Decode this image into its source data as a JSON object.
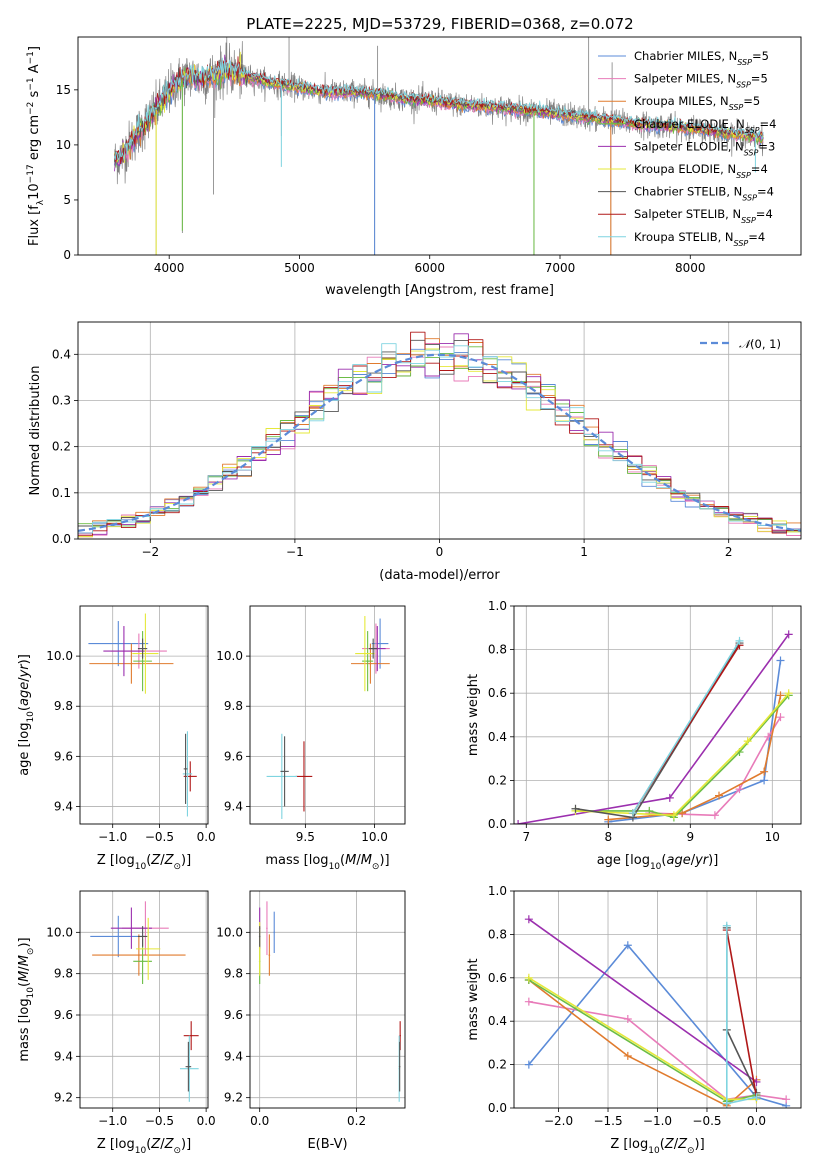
{
  "figure": {
    "title": "PLATE=2225, MJD=53729, FIBERID=0368, z=0.072"
  },
  "models": [
    {
      "name": "Chabrier MILES",
      "nssp": "5",
      "color": "#5b8bd8"
    },
    {
      "name": "Salpeter MILES",
      "nssp": "5",
      "color": "#e87bb9"
    },
    {
      "name": "Kroupa MILES",
      "nssp": "5",
      "color": "#e07b2e"
    },
    {
      "name": "Chabrier ELODIE",
      "nssp": "4",
      "color": "#6bbd45"
    },
    {
      "name": "Salpeter ELODIE",
      "nssp": "3",
      "color": "#9b2fae"
    },
    {
      "name": "Kroupa ELODIE",
      "nssp": "4",
      "color": "#e5e83a"
    },
    {
      "name": "Chabrier STELIB",
      "nssp": "4",
      "color": "#555555"
    },
    {
      "name": "Salpeter STELIB",
      "nssp": "4",
      "color": "#b01818"
    },
    {
      "name": "Kroupa STELIB",
      "nssp": "4",
      "color": "#7fd4e0"
    }
  ],
  "chart_data": [
    {
      "id": "spectrum",
      "type": "line",
      "xlabel": "wavelength [Angstrom, rest frame]",
      "ylabel": "Flux [f_λ10^-17 erg cm^-2 s^-1 A^-1]",
      "xlim": [
        3300,
        8850
      ],
      "ylim": [
        0,
        19.8
      ],
      "xticks": [
        4000,
        5000,
        6000,
        7000,
        8000
      ],
      "yticks": [
        0,
        5,
        10,
        15
      ],
      "grid": false,
      "legend": "top-right",
      "continuum": [
        [
          3580,
          8.5
        ],
        [
          3650,
          9.2
        ],
        [
          3750,
          11.0
        ],
        [
          3850,
          12.4
        ],
        [
          3950,
          14.0
        ],
        [
          4050,
          15.6
        ],
        [
          4150,
          16.3
        ],
        [
          4250,
          16.0
        ],
        [
          4350,
          16.3
        ],
        [
          4450,
          16.8
        ],
        [
          4600,
          16.2
        ],
        [
          4800,
          15.6
        ],
        [
          5000,
          15.2
        ],
        [
          5200,
          14.8
        ],
        [
          5400,
          14.8
        ],
        [
          5600,
          14.6
        ],
        [
          5800,
          14.2
        ],
        [
          6000,
          14.0
        ],
        [
          6200,
          13.7
        ],
        [
          6400,
          13.5
        ],
        [
          6600,
          13.3
        ],
        [
          6800,
          13.1
        ],
        [
          7000,
          12.8
        ],
        [
          7200,
          12.5
        ],
        [
          7400,
          12.2
        ],
        [
          7600,
          11.9
        ],
        [
          7800,
          11.7
        ],
        [
          8000,
          11.5
        ],
        [
          8200,
          11.2
        ],
        [
          8400,
          10.9
        ],
        [
          8560,
          10.6
        ]
      ],
      "data_dips": [
        [
          3900,
          0.0
        ],
        [
          4101,
          2.0
        ],
        [
          4340,
          5.5
        ],
        [
          4861,
          10.8
        ],
        [
          5577,
          0.0
        ],
        [
          6800,
          0.0
        ],
        [
          7390,
          0.0
        ]
      ],
      "data_spikes": [
        [
          4920,
          19.8
        ],
        [
          5600,
          19.0
        ],
        [
          7220,
          19.8
        ],
        [
          7400,
          17.5
        ]
      ]
    },
    {
      "id": "residual-distribution",
      "type": "line",
      "xlabel": "(data-model)/error",
      "ylabel": "Normed distribution",
      "xlim": [
        -2.5,
        2.5
      ],
      "ylim": [
        0,
        0.47
      ],
      "xticks": [
        -2,
        -1,
        0,
        1,
        2
      ],
      "yticks": [
        0.0,
        0.1,
        0.2,
        0.3,
        0.4
      ],
      "grid": true,
      "legend": "top-right",
      "reference_curve": "N(0,1)",
      "bin_width": 0.1
    },
    {
      "id": "age-vs-Z",
      "type": "scatter",
      "xlabel": "Z [log10(Z/Z⊙)]",
      "ylabel": "age  [log10(age/yr)]",
      "xlim": [
        -1.35,
        0.02
      ],
      "ylim": [
        9.33,
        10.2
      ],
      "xticks": [
        -1.0,
        -0.5,
        0.0
      ],
      "yticks": [
        9.4,
        9.6,
        9.8,
        10.0
      ],
      "grid": true,
      "points": [
        {
          "model": 0,
          "x": -0.94,
          "y": 10.05,
          "xerr": 0.32,
          "yerr": 0.09
        },
        {
          "model": 1,
          "x": -0.72,
          "y": 10.02,
          "xerr": 0.3,
          "yerr": 0.07
        },
        {
          "model": 2,
          "x": -0.8,
          "y": 9.97,
          "xerr": 0.45,
          "yerr": 0.08
        },
        {
          "model": 3,
          "x": -0.68,
          "y": 9.98,
          "xerr": 0.1,
          "yerr": 0.12
        },
        {
          "model": 4,
          "x": -0.88,
          "y": 10.02,
          "xerr": 0.22,
          "yerr": 0.1
        },
        {
          "model": 5,
          "x": -0.65,
          "y": 10.01,
          "xerr": 0.14,
          "yerr": 0.16
        },
        {
          "model": 6,
          "x": -0.68,
          "y": 10.03,
          "xerr": 0.05,
          "yerr": 0.04
        },
        {
          "model": 7,
          "x": -0.17,
          "y": 9.52,
          "xerr": 0.07,
          "yerr": 0.06
        },
        {
          "model": 8,
          "x": -0.2,
          "y": 9.53,
          "xerr": 0.05,
          "yerr": 0.17
        },
        {
          "model": 6,
          "x": -0.22,
          "y": 9.55,
          "xerr": 0.02,
          "yerr": 0.14
        }
      ]
    },
    {
      "id": "age-vs-mass",
      "type": "scatter",
      "xlabel": "mass [log10(M/M⊙)]",
      "ylabel": "",
      "xlim": [
        9.1,
        10.22
      ],
      "ylim": [
        9.33,
        10.2
      ],
      "xticks": [
        9.5,
        10.0
      ],
      "yticks": [
        9.4,
        9.6,
        9.8,
        10.0
      ],
      "grid": true,
      "points": [
        {
          "model": 0,
          "x": 10.04,
          "y": 10.05,
          "xerr": 0.06,
          "yerr": 0.1
        },
        {
          "model": 1,
          "x": 10.01,
          "y": 10.03,
          "xerr": 0.1,
          "yerr": 0.1
        },
        {
          "model": 2,
          "x": 9.97,
          "y": 9.97,
          "xerr": 0.14,
          "yerr": 0.08
        },
        {
          "model": 3,
          "x": 9.95,
          "y": 9.98,
          "xerr": 0.04,
          "yerr": 0.12
        },
        {
          "model": 4,
          "x": 10.02,
          "y": 10.03,
          "xerr": 0.06,
          "yerr": 0.09
        },
        {
          "model": 5,
          "x": 9.93,
          "y": 10.01,
          "xerr": 0.07,
          "yerr": 0.15
        },
        {
          "model": 6,
          "x": 9.99,
          "y": 10.03,
          "xerr": 0.03,
          "yerr": 0.04
        },
        {
          "model": 7,
          "x": 9.49,
          "y": 9.52,
          "xerr": 0.06,
          "yerr": 0.14
        },
        {
          "model": 8,
          "x": 9.33,
          "y": 9.52,
          "xerr": 0.11,
          "yerr": 0.17
        },
        {
          "model": 6,
          "x": 9.35,
          "y": 9.54,
          "xerr": 0.03,
          "yerr": 0.14
        }
      ]
    },
    {
      "id": "mass-weight-vs-age",
      "type": "line",
      "xlabel": "age  [log10(age/yr)]",
      "ylabel": "mass weight",
      "xlim": [
        6.85,
        10.35
      ],
      "ylim": [
        0,
        1.0
      ],
      "xticks": [
        7,
        8,
        9,
        10
      ],
      "yticks": [
        0.0,
        0.2,
        0.4,
        0.6,
        0.8,
        1.0
      ],
      "grid": true,
      "series": [
        {
          "model": 0,
          "x": [
            8.0,
            8.9,
            9.9,
            10.1
          ],
          "y": [
            0.01,
            0.05,
            0.2,
            0.75
          ]
        },
        {
          "model": 1,
          "x": [
            8.5,
            9.3,
            9.6,
            9.95,
            10.1
          ],
          "y": [
            0.05,
            0.04,
            0.16,
            0.4,
            0.49
          ]
        },
        {
          "model": 2,
          "x": [
            8.0,
            8.9,
            9.35,
            9.9,
            10.1
          ],
          "y": [
            0.02,
            0.05,
            0.13,
            0.24,
            0.59
          ]
        },
        {
          "model": 3,
          "x": [
            7.6,
            8.5,
            8.8,
            9.6,
            10.2
          ],
          "y": [
            0.06,
            0.06,
            0.03,
            0.33,
            0.59
          ]
        },
        {
          "model": 4,
          "x": [
            6.9,
            8.75,
            10.2
          ],
          "y": [
            0.0,
            0.12,
            0.87
          ]
        },
        {
          "model": 5,
          "x": [
            7.6,
            8.8,
            9.7,
            10.2
          ],
          "y": [
            0.06,
            0.04,
            0.38,
            0.6
          ]
        },
        {
          "model": 6,
          "x": [
            7.6,
            8.3,
            9.6
          ],
          "y": [
            0.07,
            0.03,
            0.83
          ]
        },
        {
          "model": 7,
          "x": [
            8.3,
            9.6
          ],
          "y": [
            0.05,
            0.82
          ]
        },
        {
          "model": 8,
          "x": [
            8.3,
            9.6
          ],
          "y": [
            0.05,
            0.84
          ]
        }
      ]
    },
    {
      "id": "mass-vs-Z",
      "type": "scatter",
      "xlabel": "Z [log10(Z/Z⊙)]",
      "ylabel": "mass [log10(M/M⊙)]",
      "xlim": [
        -1.35,
        0.02
      ],
      "ylim": [
        9.15,
        10.2
      ],
      "xticks": [
        -1.0,
        -0.5,
        0.0
      ],
      "yticks": [
        9.2,
        9.4,
        9.6,
        9.8,
        10.0
      ],
      "grid": true,
      "points": [
        {
          "model": 0,
          "x": -0.94,
          "y": 9.98,
          "xerr": 0.3,
          "yerr": 0.1
        },
        {
          "model": 1,
          "x": -0.65,
          "y": 10.02,
          "xerr": 0.25,
          "yerr": 0.13
        },
        {
          "model": 2,
          "x": -0.72,
          "y": 9.89,
          "xerr": 0.5,
          "yerr": 0.1
        },
        {
          "model": 3,
          "x": -0.68,
          "y": 9.86,
          "xerr": 0.1,
          "yerr": 0.11
        },
        {
          "model": 4,
          "x": -0.8,
          "y": 10.02,
          "xerr": 0.22,
          "yerr": 0.1
        },
        {
          "model": 5,
          "x": -0.62,
          "y": 9.92,
          "xerr": 0.13,
          "yerr": 0.15
        },
        {
          "model": 6,
          "x": -0.68,
          "y": 9.98,
          "xerr": 0.05,
          "yerr": 0.05
        },
        {
          "model": 7,
          "x": -0.16,
          "y": 9.5,
          "xerr": 0.08,
          "yerr": 0.07
        },
        {
          "model": 8,
          "x": -0.18,
          "y": 9.34,
          "xerr": 0.1,
          "yerr": 0.16
        },
        {
          "model": 6,
          "x": -0.19,
          "y": 9.35,
          "xerr": 0.03,
          "yerr": 0.12
        }
      ]
    },
    {
      "id": "mass-vs-ebv",
      "type": "scatter",
      "xlabel": "E(B-V)",
      "ylabel": "",
      "xlim": [
        -0.02,
        0.3
      ],
      "ylim": [
        9.15,
        10.2
      ],
      "xticks": [
        0.0,
        0.2
      ],
      "yticks": [
        9.2,
        9.4,
        9.6,
        9.8,
        10.0
      ],
      "grid": true,
      "points": [
        {
          "model": 0,
          "x": 0.03,
          "y": 10.0,
          "xerr": 0.0,
          "yerr": 0.1
        },
        {
          "model": 1,
          "x": 0.015,
          "y": 10.02,
          "xerr": 0.0,
          "yerr": 0.13
        },
        {
          "model": 2,
          "x": 0.02,
          "y": 9.89,
          "xerr": 0.0,
          "yerr": 0.1
        },
        {
          "model": 3,
          "x": 0.0,
          "y": 9.86,
          "xerr": 0.0,
          "yerr": 0.11
        },
        {
          "model": 4,
          "x": 0.0,
          "y": 10.02,
          "xerr": 0.0,
          "yerr": 0.1
        },
        {
          "model": 5,
          "x": 0.0,
          "y": 9.92,
          "xerr": 0.0,
          "yerr": 0.13
        },
        {
          "model": 6,
          "x": 0.0,
          "y": 9.98,
          "xerr": 0.0,
          "yerr": 0.05
        },
        {
          "model": 7,
          "x": 0.29,
          "y": 9.5,
          "xerr": 0.0,
          "yerr": 0.07
        },
        {
          "model": 8,
          "x": 0.288,
          "y": 9.34,
          "xerr": 0.0,
          "yerr": 0.16
        },
        {
          "model": 6,
          "x": 0.289,
          "y": 9.35,
          "xerr": 0.0,
          "yerr": 0.12
        }
      ]
    },
    {
      "id": "mass-weight-vs-Z",
      "type": "line",
      "xlabel": "Z [log10(Z/Z⊙)]",
      "ylabel": "mass weight",
      "xlim": [
        -2.45,
        0.45
      ],
      "ylim": [
        0,
        1.0
      ],
      "xticks": [
        -2.0,
        -1.5,
        -1.0,
        -0.5,
        0.0
      ],
      "yticks": [
        0.0,
        0.2,
        0.4,
        0.6,
        0.8,
        1.0
      ],
      "grid": true,
      "series": [
        {
          "model": 0,
          "x": [
            -2.3,
            -1.3,
            0.0,
            0.3
          ],
          "y": [
            0.2,
            0.75,
            0.05,
            0.01
          ]
        },
        {
          "model": 1,
          "x": [
            -2.3,
            -1.3,
            -0.3,
            0.0,
            0.3
          ],
          "y": [
            0.49,
            0.41,
            0.04,
            0.06,
            0.04
          ]
        },
        {
          "model": 2,
          "x": [
            -2.3,
            -1.3,
            -0.3,
            0.0
          ],
          "y": [
            0.59,
            0.24,
            0.01,
            0.13
          ]
        },
        {
          "model": 3,
          "x": [
            -2.3,
            -0.3,
            0.0
          ],
          "y": [
            0.59,
            0.03,
            0.06
          ]
        },
        {
          "model": 4,
          "x": [
            -2.3,
            0.0
          ],
          "y": [
            0.87,
            0.12
          ]
        },
        {
          "model": 5,
          "x": [
            -2.3,
            -0.3,
            0.0
          ],
          "y": [
            0.6,
            0.04,
            0.04
          ]
        },
        {
          "model": 6,
          "x": [
            -0.3,
            -0.3,
            0.0
          ],
          "y": [
            0.83,
            0.36,
            0.07
          ]
        },
        {
          "model": 7,
          "x": [
            -0.3,
            0.0
          ],
          "y": [
            0.82,
            0.05
          ]
        },
        {
          "model": 8,
          "x": [
            -0.3,
            -0.3,
            0.0
          ],
          "y": [
            0.84,
            0.02,
            0.05
          ]
        }
      ]
    }
  ]
}
